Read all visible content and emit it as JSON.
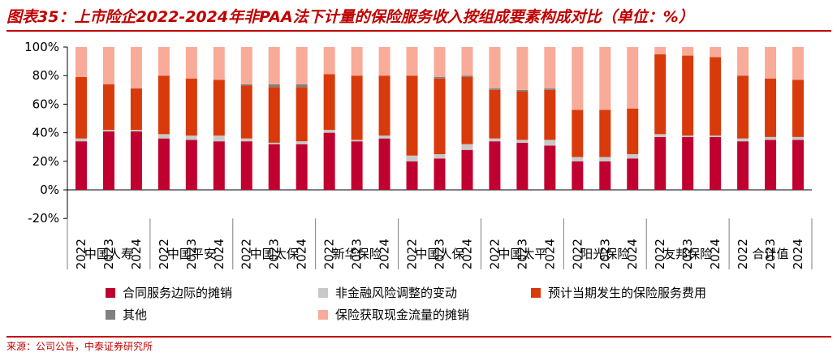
{
  "title": "图表35：上市险企2022-2024年非PAA法下计量的保险服务收入按组成要素构成对比（单位：%）",
  "source": "来源：公司公告，中泰证券研究所",
  "colors": {
    "title": "#c00000",
    "csm": "#c0002f",
    "nonfinancial_risk": "#c8c8c8",
    "expected_claims": "#d93a0b",
    "other": "#808080",
    "acquisition_cf": "#f8ab98"
  },
  "chart_data": {
    "type": "bar",
    "stacked": true,
    "ylim": [
      -20,
      100
    ],
    "yticks": [
      "100%",
      "80%",
      "60%",
      "40%",
      "20%",
      "0%",
      "-20%"
    ],
    "ytick_values": [
      100,
      80,
      60,
      40,
      20,
      0,
      -20
    ],
    "grid": false,
    "legend_position": "bottom",
    "groups": [
      "中国人寿",
      "中国平安",
      "中国太保",
      "新华保险",
      "中国人保",
      "中国太平",
      "阳光保险",
      "友邦保险",
      "合计值"
    ],
    "years": [
      "2022",
      "2023",
      "2024"
    ],
    "series": [
      {
        "name": "合同服务边际的摊销",
        "color_key": "csm",
        "values": [
          34,
          41,
          41,
          36,
          35,
          34,
          34,
          32,
          32,
          40,
          34,
          36,
          20,
          22,
          28,
          34,
          33,
          31,
          20,
          20,
          22,
          37,
          37,
          37,
          34,
          35,
          35
        ]
      },
      {
        "name": "非金融风险调整的变动",
        "color_key": "nonfinancial_risk",
        "values": [
          2,
          1,
          1,
          3,
          3,
          4,
          2,
          1,
          2,
          2,
          1,
          2,
          4,
          3,
          4,
          2,
          2,
          4,
          3,
          3,
          3,
          2,
          1,
          1,
          2,
          2,
          2
        ]
      },
      {
        "name": "预计当期发生的保险服务费用",
        "color_key": "expected_claims",
        "values": [
          43,
          32,
          29,
          41,
          40,
          39,
          37,
          39,
          38,
          39,
          45,
          42,
          56,
          53,
          47,
          34,
          34,
          35,
          33,
          33,
          32,
          56,
          56,
          55,
          44,
          41,
          40
        ]
      },
      {
        "name": "其他",
        "color_key": "other",
        "values": [
          0,
          0,
          0,
          0,
          0,
          0,
          1,
          2,
          2,
          0,
          0,
          0,
          0,
          1,
          1,
          1,
          1,
          1,
          0,
          0,
          0,
          0,
          0,
          0,
          0,
          0,
          0
        ]
      },
      {
        "name": "保险获取现金流量的摊销",
        "color_key": "acquisition_cf",
        "values": [
          21,
          26,
          29,
          20,
          22,
          23,
          26,
          26,
          26,
          19,
          20,
          20,
          20,
          21,
          20,
          29,
          30,
          29,
          44,
          44,
          43,
          5,
          6,
          7,
          20,
          22,
          23
        ]
      }
    ]
  },
  "legend": {
    "items": [
      {
        "label": "合同服务边际的摊销",
        "color_key": "csm"
      },
      {
        "label": "非金融风险调整的变动",
        "color_key": "nonfinancial_risk"
      },
      {
        "label": "预计当期发生的保险服务费用",
        "color_key": "expected_claims"
      },
      {
        "label": "其他",
        "color_key": "other"
      },
      {
        "label": "保险获取现金流量的摊销",
        "color_key": "acquisition_cf"
      }
    ]
  }
}
